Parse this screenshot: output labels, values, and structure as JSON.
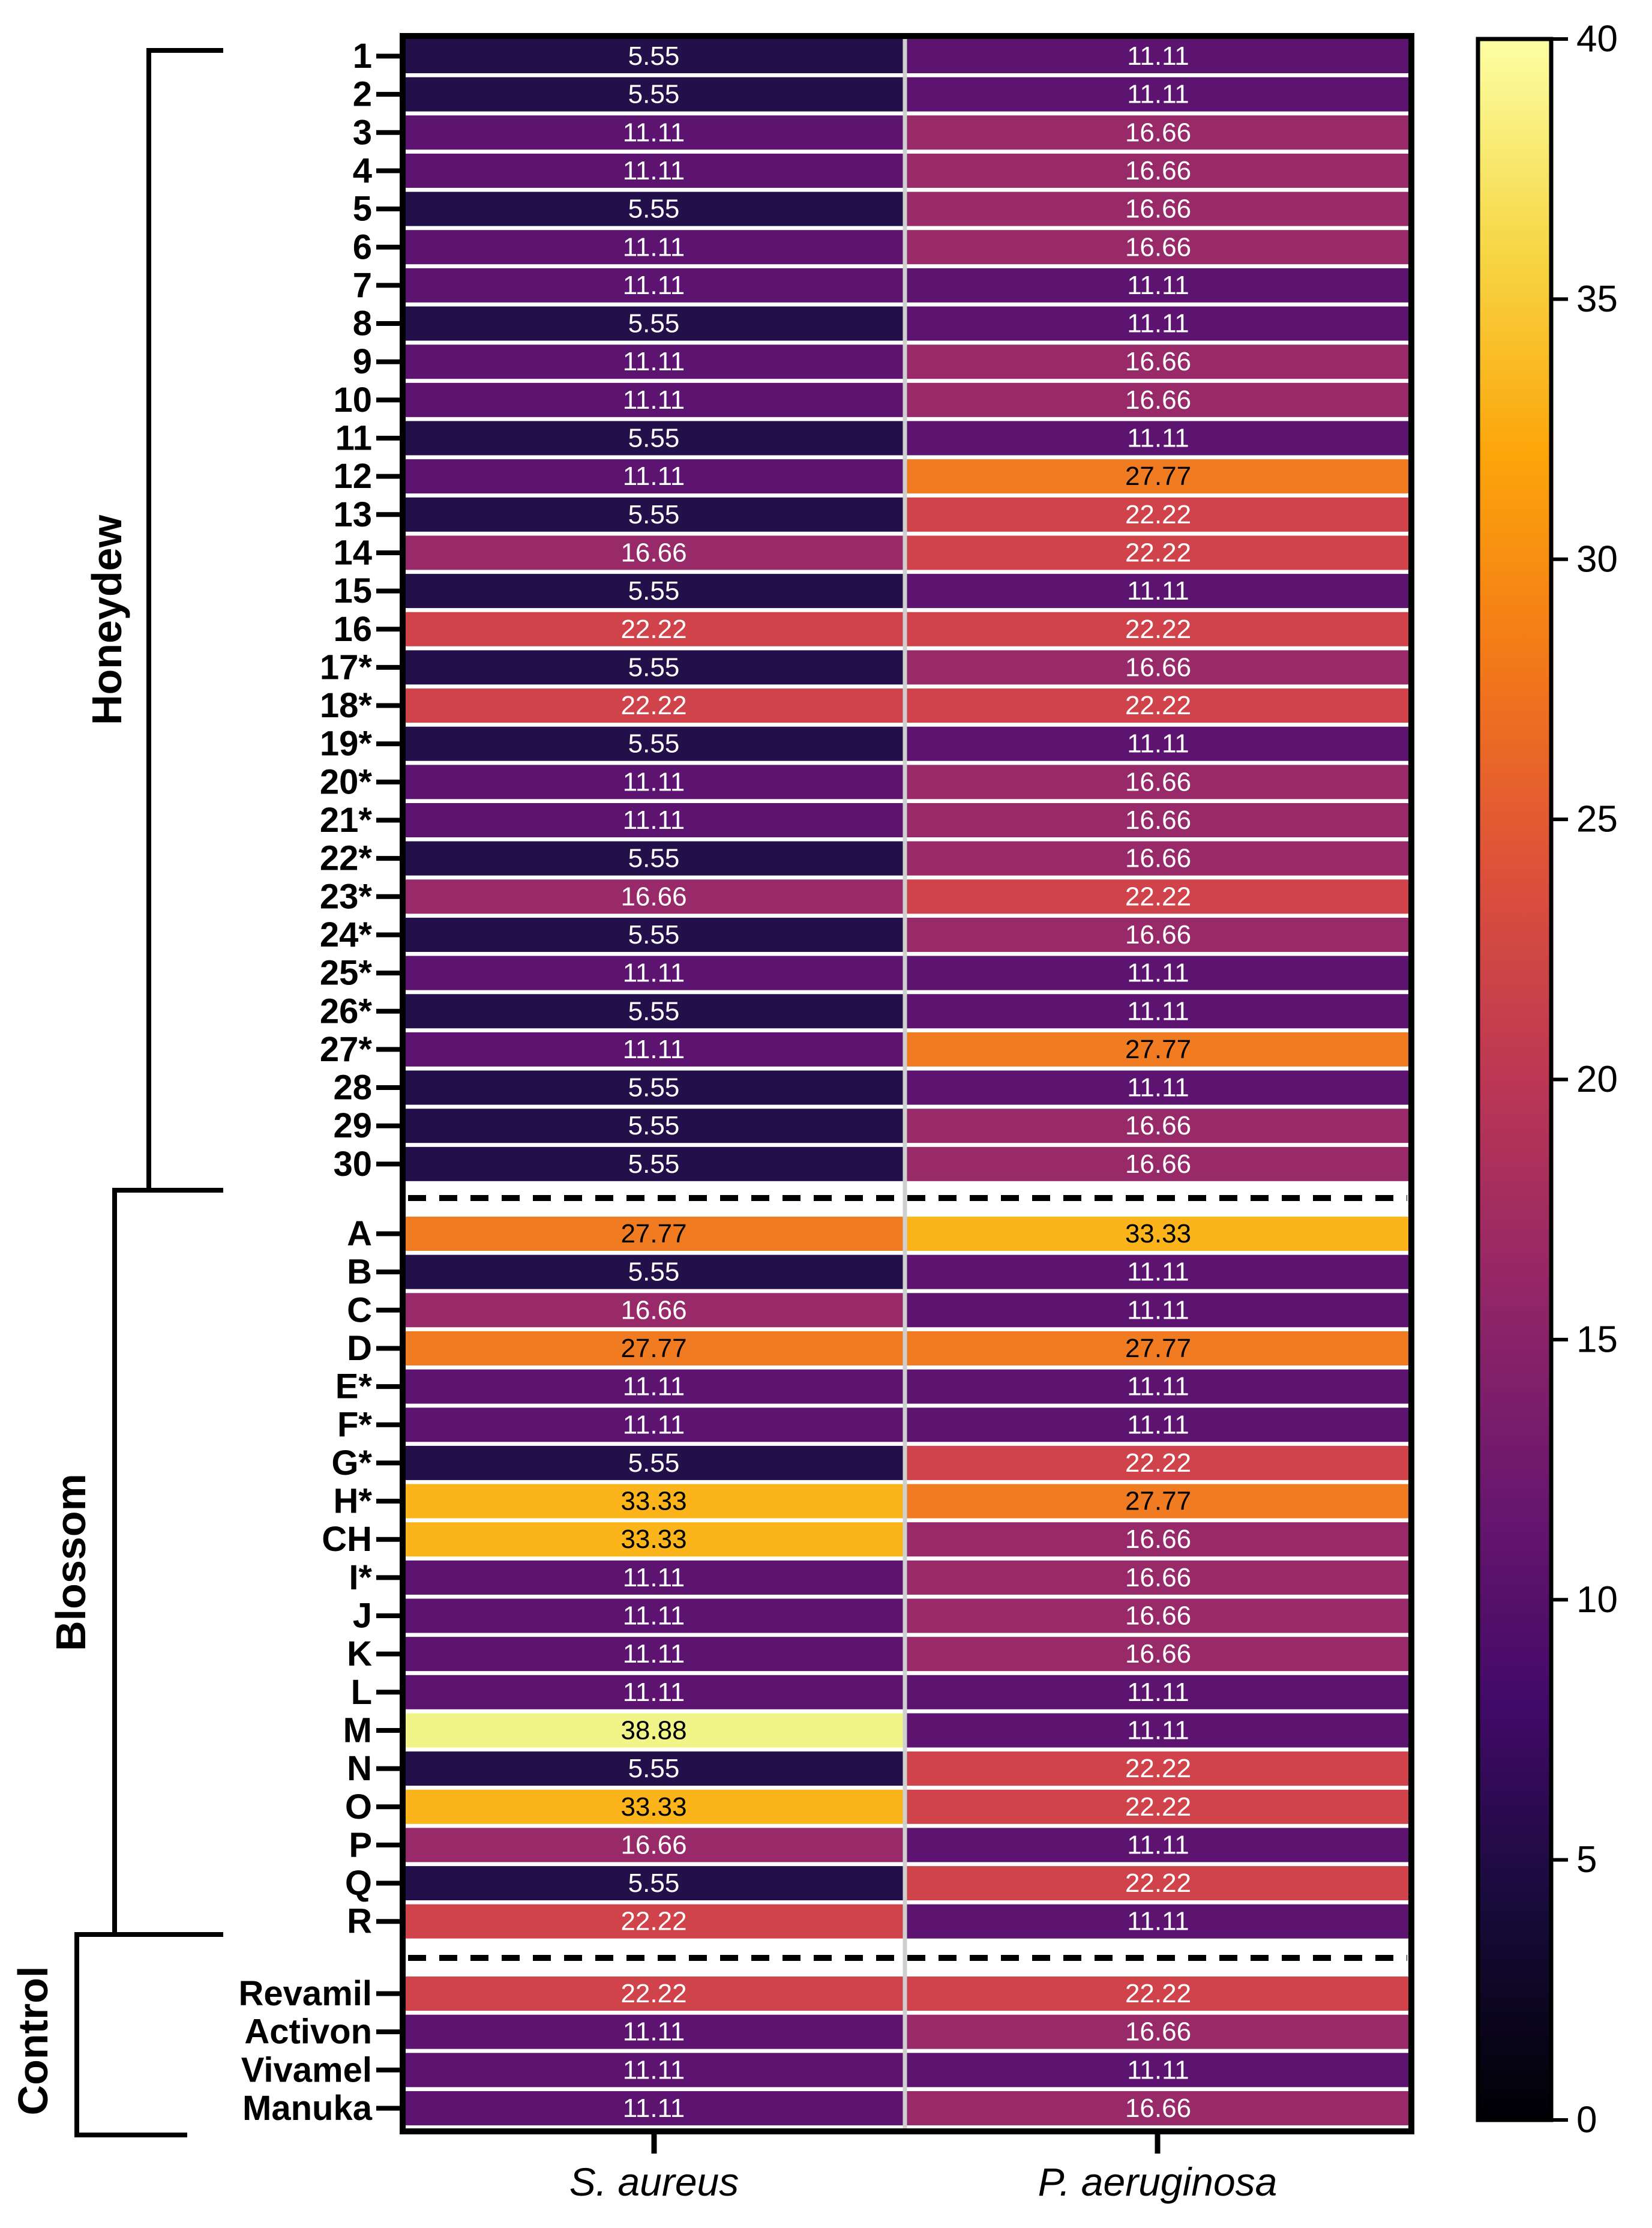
{
  "chart_data": {
    "type": "heatmap",
    "columns": [
      "S. aureus",
      "P. aeruginosa"
    ],
    "groups": [
      {
        "name": "Honeydew",
        "rows": [
          {
            "label": "1",
            "values": [
              "5.55",
              "11.11"
            ]
          },
          {
            "label": "2",
            "values": [
              "5.55",
              "11.11"
            ]
          },
          {
            "label": "3",
            "values": [
              "11.11",
              "16.66"
            ]
          },
          {
            "label": "4",
            "values": [
              "11.11",
              "16.66"
            ]
          },
          {
            "label": "5",
            "values": [
              "5.55",
              "16.66"
            ]
          },
          {
            "label": "6",
            "values": [
              "11.11",
              "16.66"
            ]
          },
          {
            "label": "7",
            "values": [
              "11.11",
              "11.11"
            ]
          },
          {
            "label": "8",
            "values": [
              "5.55",
              "11.11"
            ]
          },
          {
            "label": "9",
            "values": [
              "11.11",
              "16.66"
            ]
          },
          {
            "label": "10",
            "values": [
              "11.11",
              "16.66"
            ]
          },
          {
            "label": "11",
            "values": [
              "5.55",
              "11.11"
            ]
          },
          {
            "label": "12",
            "values": [
              "11.11",
              "27.77"
            ]
          },
          {
            "label": "13",
            "values": [
              "5.55",
              "22.22"
            ]
          },
          {
            "label": "14",
            "values": [
              "16.66",
              "22.22"
            ]
          },
          {
            "label": "15",
            "values": [
              "5.55",
              "11.11"
            ]
          },
          {
            "label": "16",
            "values": [
              "22.22",
              "22.22"
            ]
          },
          {
            "label": "17*",
            "values": [
              "5.55",
              "16.66"
            ]
          },
          {
            "label": "18*",
            "values": [
              "22.22",
              "22.22"
            ]
          },
          {
            "label": "19*",
            "values": [
              "5.55",
              "11.11"
            ]
          },
          {
            "label": "20*",
            "values": [
              "11.11",
              "16.66"
            ]
          },
          {
            "label": "21*",
            "values": [
              "11.11",
              "16.66"
            ]
          },
          {
            "label": "22*",
            "values": [
              "5.55",
              "16.66"
            ]
          },
          {
            "label": "23*",
            "values": [
              "16.66",
              "22.22"
            ]
          },
          {
            "label": "24*",
            "values": [
              "5.55",
              "16.66"
            ]
          },
          {
            "label": "25*",
            "values": [
              "11.11",
              "11.11"
            ]
          },
          {
            "label": "26*",
            "values": [
              "5.55",
              "11.11"
            ]
          },
          {
            "label": "27*",
            "values": [
              "11.11",
              "27.77"
            ]
          },
          {
            "label": "28",
            "values": [
              "5.55",
              "11.11"
            ]
          },
          {
            "label": "29",
            "values": [
              "5.55",
              "16.66"
            ]
          },
          {
            "label": "30",
            "values": [
              "5.55",
              "16.66"
            ]
          }
        ]
      },
      {
        "name": "Blossom",
        "rows": [
          {
            "label": "A",
            "values": [
              "27.77",
              "33.33"
            ]
          },
          {
            "label": "B",
            "values": [
              "5.55",
              "11.11"
            ]
          },
          {
            "label": "C",
            "values": [
              "16.66",
              "11.11"
            ]
          },
          {
            "label": "D",
            "values": [
              "27.77",
              "27.77"
            ]
          },
          {
            "label": "E*",
            "values": [
              "11.11",
              "11.11"
            ]
          },
          {
            "label": "F*",
            "values": [
              "11.11",
              "11.11"
            ]
          },
          {
            "label": "G*",
            "values": [
              "5.55",
              "22.22"
            ]
          },
          {
            "label": "H*",
            "values": [
              "33.33",
              "27.77"
            ]
          },
          {
            "label": "CH",
            "values": [
              "33.33",
              "16.66"
            ]
          },
          {
            "label": "I*",
            "values": [
              "11.11",
              "16.66"
            ]
          },
          {
            "label": "J",
            "values": [
              "11.11",
              "16.66"
            ]
          },
          {
            "label": "K",
            "values": [
              "11.11",
              "16.66"
            ]
          },
          {
            "label": "L",
            "values": [
              "11.11",
              "11.11"
            ]
          },
          {
            "label": "M",
            "values": [
              "38.88",
              "11.11"
            ]
          },
          {
            "label": "N",
            "values": [
              "5.55",
              "22.22"
            ]
          },
          {
            "label": "O",
            "values": [
              "33.33",
              "22.22"
            ]
          },
          {
            "label": "P",
            "values": [
              "16.66",
              "11.11"
            ]
          },
          {
            "label": "Q",
            "values": [
              "5.55",
              "22.22"
            ]
          },
          {
            "label": "R",
            "values": [
              "22.22",
              "11.11"
            ]
          }
        ]
      },
      {
        "name": "Control",
        "rows": [
          {
            "label": "Revamil",
            "values": [
              "22.22",
              "22.22"
            ]
          },
          {
            "label": "Activon",
            "values": [
              "11.11",
              "16.66"
            ]
          },
          {
            "label": "Vivamel",
            "values": [
              "11.11",
              "11.11"
            ]
          },
          {
            "label": "Manuka",
            "values": [
              "11.11",
              "16.66"
            ]
          }
        ]
      }
    ],
    "colorbar": {
      "range": [
        0,
        40
      ],
      "ticks": [
        "0",
        "5",
        "10",
        "15",
        "20",
        "25",
        "30",
        "35",
        "40"
      ],
      "colormap": "inferno"
    },
    "colors": {
      "5.55": "#230f4a",
      "11.11": "#5c1470",
      "16.66": "#982a6a",
      "22.22": "#d1434a",
      "27.77": "#f07b21",
      "33.33": "#fbb51b",
      "38.88": "#f1f587"
    }
  }
}
